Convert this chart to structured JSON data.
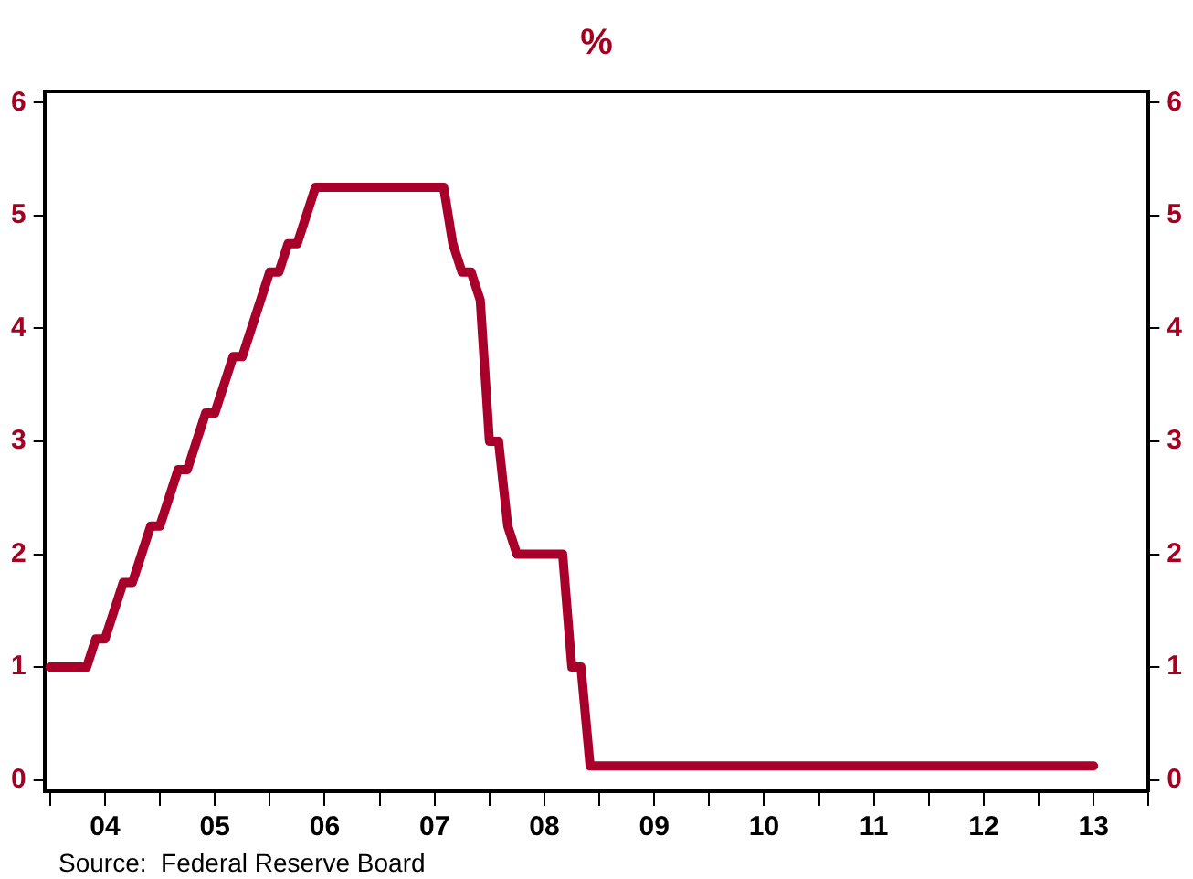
{
  "chart_data": {
    "type": "line",
    "title": "%",
    "x": [
      "2004-01",
      "2004-05",
      "2004-06",
      "2004-07",
      "2004-09",
      "2004-10",
      "2004-12",
      "2005-01",
      "2005-03",
      "2005-04",
      "2005-06",
      "2005-07",
      "2005-09",
      "2005-10",
      "2006-01",
      "2006-02",
      "2006-03",
      "2006-04",
      "2006-06",
      "2007-08",
      "2007-09",
      "2007-10",
      "2007-11",
      "2007-12",
      "2008-01",
      "2008-02",
      "2008-03",
      "2008-04",
      "2008-09",
      "2008-10",
      "2008-11",
      "2008-12",
      "2013-07"
    ],
    "series": [
      {
        "color": "#a8002a",
        "values": [
          1,
          1,
          1.25,
          1.25,
          1.75,
          1.75,
          2.25,
          2.25,
          2.75,
          2.75,
          3.25,
          3.25,
          3.75,
          3.75,
          4.5,
          4.5,
          4.75,
          4.75,
          5.25,
          5.25,
          4.75,
          4.5,
          4.5,
          4.25,
          3,
          3,
          2.25,
          2,
          2,
          1,
          1,
          0.125,
          0.125
        ]
      }
    ],
    "xlim": [
      "2003-12-13",
      "2014-01"
    ],
    "xticks": [
      {
        "value": "2004-01",
        "label": null
      },
      {
        "value": "2004-07",
        "label": "04"
      },
      {
        "value": "2005-01",
        "label": null
      },
      {
        "value": "2005-07",
        "label": "05"
      },
      {
        "value": "2006-01",
        "label": null
      },
      {
        "value": "2006-07",
        "label": "06"
      },
      {
        "value": "2007-01",
        "label": null
      },
      {
        "value": "2007-07",
        "label": "07"
      },
      {
        "value": "2008-01",
        "label": null
      },
      {
        "value": "2008-07",
        "label": "08"
      },
      {
        "value": "2009-01",
        "label": null
      },
      {
        "value": "2009-07",
        "label": "09"
      },
      {
        "value": "2010-01",
        "label": null
      },
      {
        "value": "2010-07",
        "label": "10"
      },
      {
        "value": "2011-01",
        "label": null
      },
      {
        "value": "2011-07",
        "label": "11"
      },
      {
        "value": "2012-01",
        "label": null
      },
      {
        "value": "2012-07",
        "label": "12"
      },
      {
        "value": "2013-01",
        "label": null
      },
      {
        "value": "2013-07",
        "label": "13"
      },
      {
        "value": "2014-01",
        "label": null
      }
    ],
    "ylim": [
      -0.1,
      6.1
    ],
    "yticks": [
      0,
      1,
      2,
      3,
      4,
      5,
      6
    ],
    "y2lim": [
      -0.1,
      6.1
    ],
    "y2ticks": [
      0,
      1,
      2,
      3,
      4,
      5,
      6
    ],
    "grid": false,
    "legend": false,
    "marker": "none",
    "line_style": "solid",
    "annotations": [
      "Source:  Federal Reserve Board"
    ]
  }
}
